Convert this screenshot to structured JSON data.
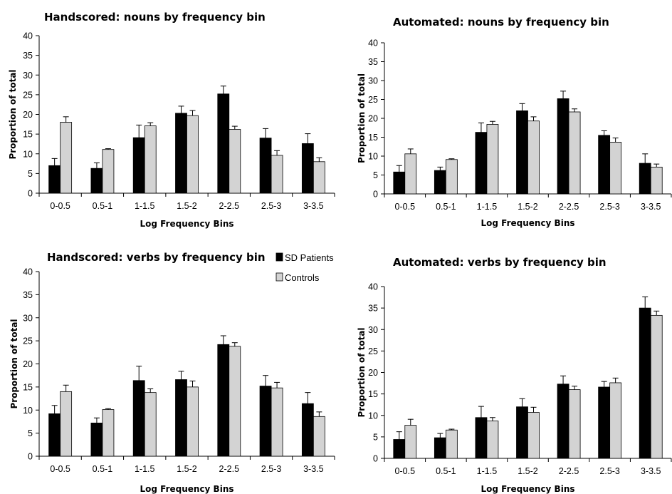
{
  "legend": {
    "items": [
      {
        "label": "SD Patients",
        "color": "#000000"
      },
      {
        "label": "Controls",
        "color": "#d3d3d3"
      }
    ]
  },
  "chart_data": [
    {
      "type": "bar",
      "title": "Handscored: nouns by frequency bin",
      "xlabel": "Log Frequency Bins",
      "ylabel": "Proportion of total",
      "ylim": [
        0,
        40
      ],
      "yticks": [
        0,
        5,
        10,
        15,
        20,
        25,
        30,
        35,
        40
      ],
      "categories": [
        "0-0.5",
        "0.5-1",
        "1-1.5",
        "1.5-2",
        "2-2.5",
        "2.5-3",
        "3-3.5"
      ],
      "series": [
        {
          "name": "SD Patients",
          "color": "#000000",
          "values": [
            7.0,
            6.3,
            14.1,
            20.3,
            25.2,
            14.0,
            12.6
          ],
          "errors": [
            1.8,
            1.4,
            3.2,
            1.8,
            2.0,
            2.4,
            2.5
          ]
        },
        {
          "name": "Controls",
          "color": "#d3d3d3",
          "values": [
            18.0,
            11.1,
            17.1,
            19.7,
            16.2,
            9.6,
            8.0
          ],
          "errors": [
            1.4,
            0.2,
            0.8,
            1.3,
            0.8,
            1.2,
            1.0
          ]
        }
      ]
    },
    {
      "type": "bar",
      "title": "Automated: nouns by frequency bin",
      "xlabel": "Log Frequency Bins",
      "ylabel": "Proportion of  total",
      "ylim": [
        0,
        40
      ],
      "yticks": [
        0,
        5,
        10,
        15,
        20,
        25,
        30,
        35,
        40
      ],
      "categories": [
        "0-0.5",
        "0.5-1",
        "1-1.5",
        "1.5-2",
        "2-2.5",
        "2.5-3",
        "3-3.5"
      ],
      "series": [
        {
          "name": "SD Patients",
          "color": "#000000",
          "values": [
            5.8,
            6.2,
            16.3,
            22.0,
            25.2,
            15.5,
            8.1
          ],
          "errors": [
            1.7,
            0.9,
            2.5,
            1.9,
            2.0,
            1.2,
            2.5
          ]
        },
        {
          "name": "Controls",
          "color": "#d3d3d3",
          "values": [
            10.6,
            9.1,
            18.4,
            19.3,
            21.7,
            13.7,
            7.1
          ],
          "errors": [
            1.3,
            0.2,
            0.8,
            1.1,
            0.8,
            1.1,
            0.8
          ]
        }
      ]
    },
    {
      "type": "bar",
      "title": "Handscored: verbs by frequency bin",
      "xlabel": "Log Frequency Bins",
      "ylabel": "Proportion of total",
      "ylim": [
        0,
        40
      ],
      "yticks": [
        0,
        5,
        10,
        15,
        20,
        25,
        30,
        35,
        40
      ],
      "categories": [
        "0-0.5",
        "0.5-1",
        "1-1.5",
        "1.5-2",
        "2-2.5",
        "2.5-3",
        "3-3.5"
      ],
      "series": [
        {
          "name": "SD Patients",
          "color": "#000000",
          "values": [
            9.2,
            7.2,
            16.4,
            16.6,
            24.2,
            15.2,
            11.4
          ],
          "errors": [
            1.8,
            1.1,
            3.1,
            1.8,
            1.9,
            2.3,
            2.4
          ]
        },
        {
          "name": "Controls",
          "color": "#d3d3d3",
          "values": [
            14.0,
            10.1,
            13.8,
            15.0,
            23.8,
            14.8,
            8.6
          ],
          "errors": [
            1.4,
            0.2,
            0.8,
            1.3,
            0.8,
            1.2,
            1.0
          ]
        }
      ]
    },
    {
      "type": "bar",
      "title": "Automated: verbs by frequency bin",
      "xlabel": "Log Frequency Bins",
      "ylabel": "Proportion of  total",
      "ylim": [
        0,
        40
      ],
      "yticks": [
        0,
        5,
        10,
        15,
        20,
        25,
        30,
        35,
        40
      ],
      "categories": [
        "0-0.5",
        "0.5-1",
        "1-1.5",
        "1.5-2",
        "2-2.5",
        "2.5-3",
        "3-3.5"
      ],
      "series": [
        {
          "name": "SD Patients",
          "color": "#000000",
          "values": [
            4.4,
            4.8,
            9.5,
            12.0,
            17.3,
            16.6,
            35.0
          ],
          "errors": [
            1.8,
            1.0,
            2.6,
            1.9,
            1.9,
            1.3,
            2.6
          ]
        },
        {
          "name": "Controls",
          "color": "#d3d3d3",
          "values": [
            7.7,
            6.6,
            8.7,
            10.7,
            16.0,
            17.6,
            33.3
          ],
          "errors": [
            1.4,
            0.2,
            0.8,
            1.2,
            0.8,
            1.1,
            1.0
          ]
        }
      ]
    }
  ]
}
